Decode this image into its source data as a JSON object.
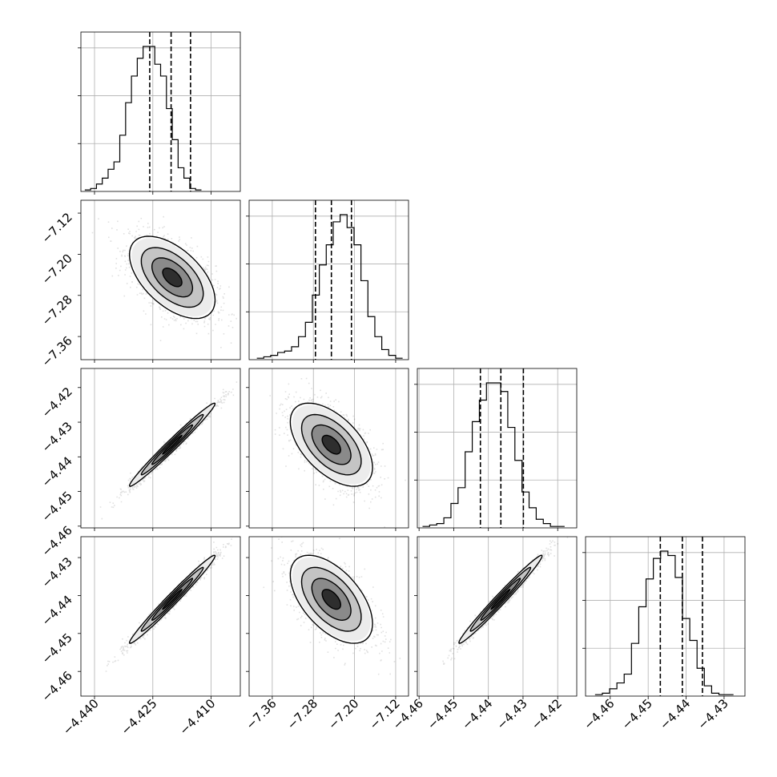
{
  "chart_data": {
    "type": "corner",
    "grid": true,
    "params": [
      {
        "range": [
          -4.4435,
          -4.4025
        ],
        "ticks": [
          {
            "v": -4.44,
            "label": "−4.440"
          },
          {
            "v": -4.425,
            "label": "−4.425"
          },
          {
            "v": -4.41,
            "label": "−4.410"
          }
        ],
        "quantiles": [
          -4.4258,
          -4.4203,
          -4.4153
        ]
      },
      {
        "range": [
          -7.405,
          -7.095
        ],
        "ticks": [
          {
            "v": -7.36,
            "label": "−7.36"
          },
          {
            "v": -7.28,
            "label": "−7.28"
          },
          {
            "v": -7.2,
            "label": "−7.20"
          },
          {
            "v": -7.12,
            "label": "−7.12"
          }
        ],
        "quantiles": [
          -7.276,
          -7.245,
          -7.206
        ]
      },
      {
        "range": [
          -4.4605,
          -4.4145
        ],
        "ticks": [
          {
            "v": -4.46,
            "label": "−4.46"
          },
          {
            "v": -4.45,
            "label": "−4.45"
          },
          {
            "v": -4.44,
            "label": "−4.44"
          },
          {
            "v": -4.43,
            "label": "−4.43"
          },
          {
            "v": -4.42,
            "label": "−4.42"
          }
        ],
        "quantiles": [
          -4.4423,
          -4.4364,
          -4.4299
        ]
      },
      {
        "range": [
          -4.4665,
          -4.4245
        ],
        "ticks": [
          {
            "v": -4.46,
            "label": "−4.46"
          },
          {
            "v": -4.45,
            "label": "−4.45"
          },
          {
            "v": -4.44,
            "label": "−4.44"
          },
          {
            "v": -4.43,
            "label": "−4.43"
          }
        ],
        "quantiles": [
          -4.4468,
          -4.441,
          -4.4357
        ]
      }
    ],
    "histograms": [
      {
        "bin_start": -4.4425,
        "bin_width": 0.0015,
        "counts": [
          1,
          2,
          5,
          9,
          15,
          20,
          38,
          60,
          78,
          90,
          98,
          98,
          86,
          78,
          56,
          35,
          16,
          9,
          2,
          1
        ]
      },
      {
        "bin_start": -7.39,
        "bin_width": 0.0135,
        "counts": [
          1,
          2,
          3,
          5,
          6,
          9,
          16,
          26,
          45,
          66,
          80,
          96,
          101,
          92,
          80,
          55,
          30,
          16,
          7,
          3,
          1
        ]
      },
      {
        "bin_start": -4.459,
        "bin_width": 0.00205,
        "counts": [
          1,
          2,
          3,
          7,
          17,
          28,
          53,
          74,
          89,
          101,
          101,
          95,
          70,
          47,
          25,
          14,
          6,
          3,
          1,
          1
        ]
      },
      {
        "bin_start": -4.464,
        "bin_width": 0.00192,
        "counts": [
          1,
          2,
          5,
          9,
          15,
          36,
          61,
          80,
          94,
          99,
          96,
          81,
          53,
          38,
          19,
          7,
          2,
          1,
          1
        ]
      }
    ],
    "pairs": [
      {
        "x": 0,
        "y": 1,
        "center": [
          -4.42,
          -7.245
        ],
        "sd": [
          0.0055,
          0.04
        ],
        "corr": -0.55
      },
      {
        "x": 0,
        "y": 2,
        "center": [
          -4.42,
          -4.4365
        ],
        "sd": [
          0.0055,
          0.006
        ],
        "corr": 0.985
      },
      {
        "x": 1,
        "y": 2,
        "center": [
          -7.245,
          -4.4365
        ],
        "sd": [
          0.04,
          0.006
        ],
        "corr": -0.55
      },
      {
        "x": 0,
        "y": 3,
        "center": [
          -4.42,
          -4.441
        ],
        "sd": [
          0.0055,
          0.0058
        ],
        "corr": 0.985
      },
      {
        "x": 1,
        "y": 3,
        "center": [
          -7.245,
          -4.441
        ],
        "sd": [
          0.04,
          0.0058
        ],
        "corr": -0.55
      },
      {
        "x": 2,
        "y": 3,
        "center": [
          -4.4365,
          -4.441
        ],
        "sd": [
          0.006,
          0.0058
        ],
        "corr": 0.985
      }
    ]
  }
}
